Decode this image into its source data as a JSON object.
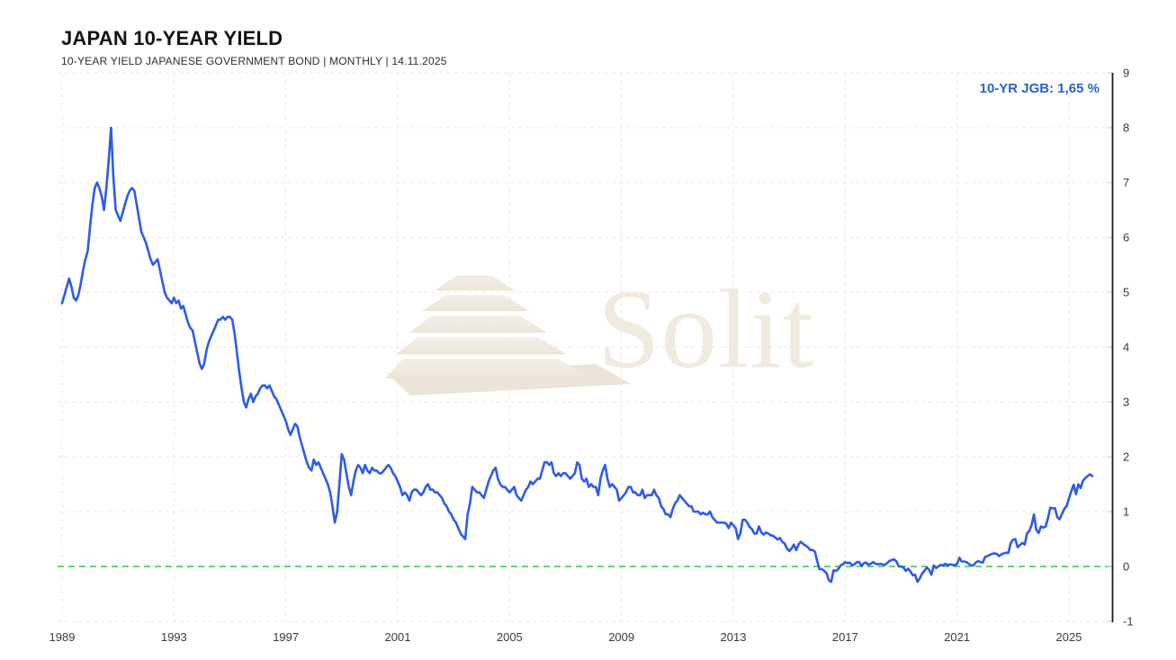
{
  "header": {
    "title": "JAPAN 10-YEAR YIELD",
    "subtitle": "10-YEAR YIELD JAPANESE GOVERNMENT BOND | MONTHLY | 14.11.2025"
  },
  "legend": {
    "text": "10-YR JGB: 1,65 %",
    "color": "#2b5fd4"
  },
  "watermark": {
    "text": "Solit",
    "logo": "step-pyramid-icon"
  },
  "chart_data": {
    "type": "line",
    "title": "Japan 10-Year Yield",
    "series_name": "10-YR JGB",
    "unit": "%",
    "frequency": "MONTHLY",
    "as_of": "14.11.2025",
    "last_value": 1.65,
    "grid": true,
    "legend_position": "top-right",
    "x_start_year": 1989,
    "x_start_month": 1,
    "x_tick_years": [
      1989,
      1993,
      1997,
      2001,
      2005,
      2009,
      2013,
      2017,
      2021,
      2025
    ],
    "y_ticks": [
      9,
      8,
      7,
      6,
      5,
      4,
      3,
      2,
      1,
      0,
      -1
    ],
    "ylim": [
      -1,
      9
    ],
    "line_color": "#2e5be8",
    "zero_line": {
      "value": 0,
      "color": "#2bc94a"
    },
    "values": [
      4.8,
      4.95,
      5.1,
      5.25,
      5.1,
      4.9,
      4.85,
      4.95,
      5.15,
      5.4,
      5.6,
      5.75,
      6.2,
      6.6,
      6.9,
      7.0,
      6.9,
      6.75,
      6.5,
      6.9,
      7.4,
      8.0,
      7.1,
      6.5,
      6.4,
      6.3,
      6.45,
      6.6,
      6.75,
      6.85,
      6.9,
      6.85,
      6.6,
      6.35,
      6.1,
      6.0,
      5.9,
      5.75,
      5.6,
      5.5,
      5.55,
      5.6,
      5.4,
      5.2,
      5.0,
      4.9,
      4.85,
      4.8,
      4.9,
      4.8,
      4.85,
      4.7,
      4.75,
      4.6,
      4.45,
      4.35,
      4.3,
      4.1,
      3.9,
      3.7,
      3.6,
      3.7,
      3.95,
      4.1,
      4.2,
      4.3,
      4.4,
      4.5,
      4.5,
      4.55,
      4.5,
      4.55,
      4.55,
      4.5,
      4.25,
      3.9,
      3.55,
      3.25,
      3.0,
      2.9,
      3.05,
      3.15,
      3.0,
      3.1,
      3.15,
      3.25,
      3.3,
      3.3,
      3.25,
      3.3,
      3.2,
      3.1,
      3.05,
      2.95,
      2.85,
      2.75,
      2.65,
      2.5,
      2.4,
      2.5,
      2.6,
      2.55,
      2.35,
      2.2,
      2.05,
      1.9,
      1.8,
      1.75,
      1.95,
      1.85,
      1.9,
      1.8,
      1.7,
      1.6,
      1.5,
      1.35,
      1.1,
      0.8,
      1.0,
      1.5,
      2.05,
      1.95,
      1.7,
      1.45,
      1.3,
      1.55,
      1.75,
      1.85,
      1.8,
      1.7,
      1.85,
      1.75,
      1.7,
      1.8,
      1.75,
      1.75,
      1.7,
      1.7,
      1.75,
      1.8,
      1.85,
      1.8,
      1.7,
      1.65,
      1.55,
      1.45,
      1.3,
      1.35,
      1.3,
      1.2,
      1.35,
      1.4,
      1.4,
      1.35,
      1.3,
      1.35,
      1.45,
      1.5,
      1.4,
      1.4,
      1.35,
      1.35,
      1.3,
      1.25,
      1.15,
      1.1,
      1.0,
      0.95,
      0.85,
      0.8,
      0.7,
      0.6,
      0.55,
      0.5,
      0.95,
      1.15,
      1.45,
      1.4,
      1.35,
      1.35,
      1.3,
      1.25,
      1.4,
      1.55,
      1.65,
      1.75,
      1.8,
      1.6,
      1.5,
      1.45,
      1.45,
      1.4,
      1.35,
      1.4,
      1.45,
      1.3,
      1.25,
      1.2,
      1.3,
      1.4,
      1.45,
      1.55,
      1.5,
      1.55,
      1.6,
      1.6,
      1.75,
      1.9,
      1.9,
      1.85,
      1.9,
      1.7,
      1.65,
      1.7,
      1.65,
      1.7,
      1.7,
      1.65,
      1.6,
      1.65,
      1.7,
      1.9,
      1.85,
      1.6,
      1.55,
      1.6,
      1.45,
      1.5,
      1.45,
      1.45,
      1.3,
      1.6,
      1.75,
      1.85,
      1.6,
      1.45,
      1.5,
      1.45,
      1.4,
      1.2,
      1.25,
      1.3,
      1.35,
      1.45,
      1.45,
      1.35,
      1.35,
      1.3,
      1.3,
      1.4,
      1.25,
      1.3,
      1.3,
      1.3,
      1.4,
      1.3,
      1.25,
      1.1,
      1.05,
      0.95,
      0.95,
      0.9,
      1.05,
      1.15,
      1.2,
      1.3,
      1.25,
      1.2,
      1.15,
      1.1,
      1.1,
      1.0,
      1.0,
      1.0,
      0.95,
      0.98,
      0.95,
      0.95,
      1.0,
      0.9,
      0.85,
      0.8,
      0.8,
      0.8,
      0.8,
      0.78,
      0.7,
      0.8,
      0.75,
      0.7,
      0.5,
      0.6,
      0.85,
      0.85,
      0.8,
      0.72,
      0.68,
      0.6,
      0.6,
      0.73,
      0.62,
      0.58,
      0.62,
      0.6,
      0.57,
      0.56,
      0.53,
      0.49,
      0.52,
      0.45,
      0.42,
      0.33,
      0.28,
      0.33,
      0.4,
      0.3,
      0.4,
      0.45,
      0.41,
      0.38,
      0.35,
      0.3,
      0.3,
      0.27,
      0.1,
      -0.05,
      -0.05,
      -0.08,
      -0.12,
      -0.25,
      -0.28,
      -0.07,
      -0.08,
      -0.05,
      0.02,
      0.04,
      0.08,
      0.06,
      0.07,
      0.02,
      0.04,
      0.08,
      0.08,
      0.01,
      0.06,
      0.07,
      0.03,
      0.05,
      0.08,
      0.05,
      0.04,
      0.05,
      0.04,
      0.03,
      0.06,
      0.1,
      0.12,
      0.13,
      0.09,
      0.0,
      0.0,
      -0.02,
      -0.08,
      -0.04,
      -0.09,
      -0.16,
      -0.15,
      -0.28,
      -0.22,
      -0.13,
      -0.08,
      -0.02,
      -0.06,
      -0.15,
      0.02,
      -0.03,
      0.0,
      0.03,
      0.02,
      0.05,
      0.02,
      0.04,
      0.03,
      0.02,
      0.05,
      0.16,
      0.09,
      0.09,
      0.08,
      0.05,
      0.02,
      0.02,
      0.07,
      0.1,
      0.08,
      0.07,
      0.17,
      0.19,
      0.21,
      0.23,
      0.24,
      0.23,
      0.19,
      0.22,
      0.24,
      0.25,
      0.25,
      0.42,
      0.49,
      0.5,
      0.35,
      0.39,
      0.43,
      0.4,
      0.6,
      0.65,
      0.76,
      0.95,
      0.67,
      0.61,
      0.73,
      0.71,
      0.73,
      0.88,
      1.07,
      1.06,
      1.06,
      0.9,
      0.86,
      0.95,
      1.05,
      1.1,
      1.24,
      1.37,
      1.49,
      1.32,
      1.5,
      1.43,
      1.56,
      1.61,
      1.65,
      1.68,
      1.65
    ]
  }
}
